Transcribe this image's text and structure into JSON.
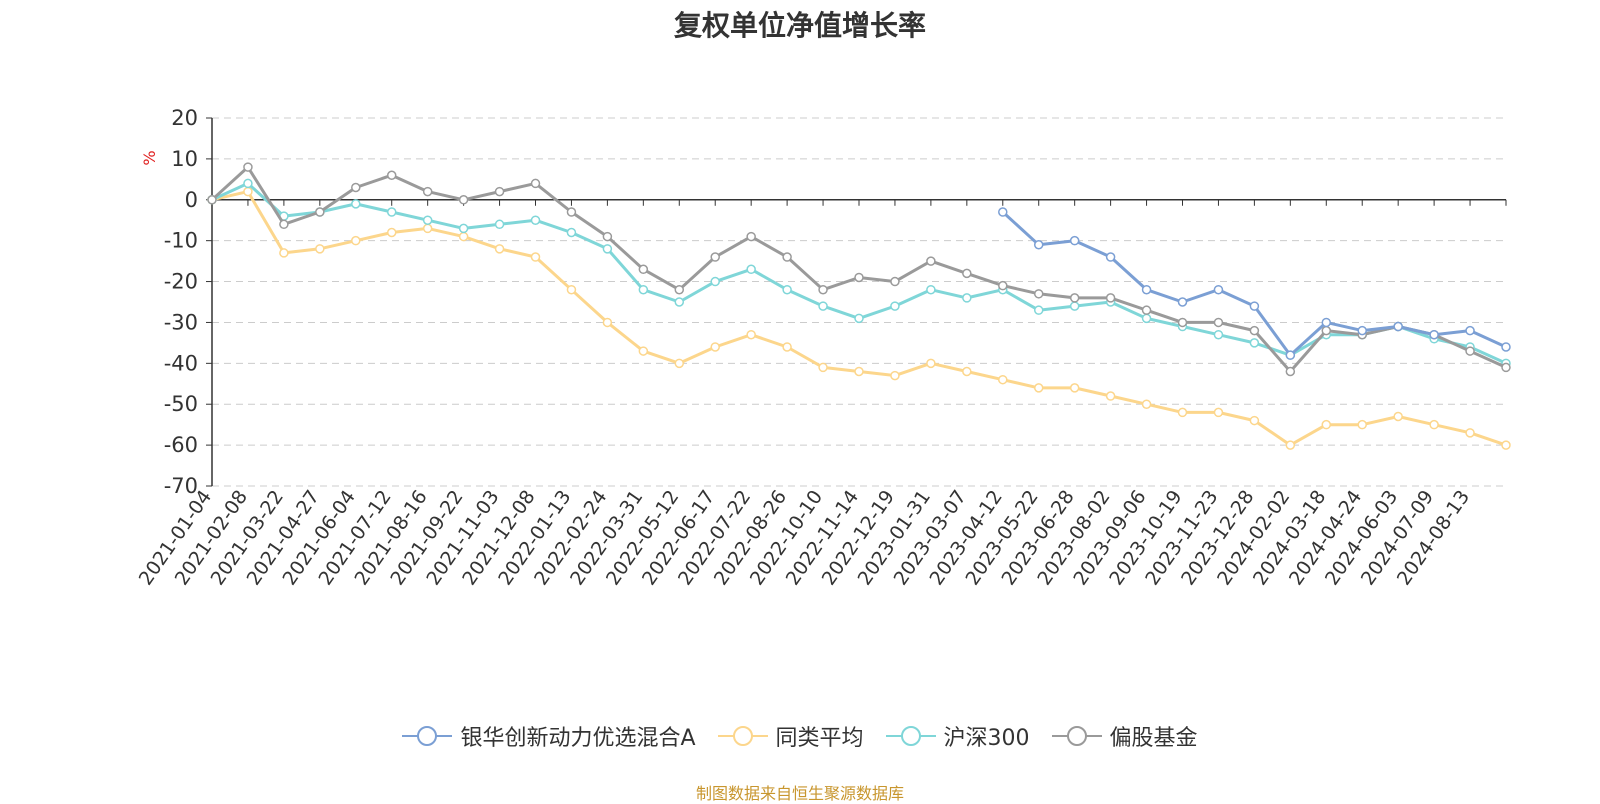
{
  "chart_data": {
    "type": "line",
    "title": "复权单位净值增长率",
    "ylabel": "%",
    "ylim": [
      -70,
      20
    ],
    "yticks": [
      20,
      10,
      0,
      -10,
      -20,
      -30,
      -40,
      -50,
      -60,
      -70
    ],
    "grid": true,
    "legend_position": "bottom-center",
    "x_tick_labels": [
      "2021-01-04",
      "2021-02-08",
      "2021-03-22",
      "2021-04-27",
      "2021-06-04",
      "2021-07-12",
      "2021-08-16",
      "2021-09-22",
      "2021-11-03",
      "2021-12-08",
      "2022-01-13",
      "2022-02-24",
      "2022-03-31",
      "2022-05-12",
      "2022-06-17",
      "2022-07-22",
      "2022-08-26",
      "2022-10-10",
      "2022-11-14",
      "2022-12-19",
      "2023-01-31",
      "2023-03-07",
      "2023-04-12",
      "2023-05-22",
      "2023-06-28",
      "2023-08-02",
      "2023-09-06",
      "2023-10-19",
      "2023-11-23",
      "2023-12-28",
      "2024-02-02",
      "2024-03-18",
      "2024-04-24",
      "2024-06-03",
      "2024-07-09",
      "2024-08-13"
    ],
    "x": [
      "2021-01-04",
      "2021-02-08",
      "2021-03-22",
      "2021-04-27",
      "2021-06-04",
      "2021-07-12",
      "2021-08-16",
      "2021-09-22",
      "2021-11-03",
      "2021-12-08",
      "2022-01-13",
      "2022-02-24",
      "2022-03-31",
      "2022-05-12",
      "2022-06-17",
      "2022-07-22",
      "2022-08-26",
      "2022-10-10",
      "2022-11-14",
      "2022-12-19",
      "2023-01-31",
      "2023-03-07",
      "2023-04-12",
      "2023-05-22",
      "2023-06-28",
      "2023-08-02",
      "2023-09-06",
      "2023-10-19",
      "2023-11-23",
      "2023-12-28",
      "2024-02-02",
      "2024-03-18",
      "2024-04-24",
      "2024-06-03",
      "2024-07-09",
      "2024-08-13",
      "2024-09-13"
    ],
    "series": [
      {
        "name": "银华创新动力优选混合A",
        "color": "#7b9fd4",
        "values": [
          null,
          null,
          null,
          null,
          null,
          null,
          null,
          null,
          null,
          null,
          null,
          null,
          null,
          null,
          null,
          null,
          null,
          null,
          null,
          null,
          null,
          null,
          -3,
          -11,
          -10,
          -14,
          -22,
          -25,
          -22,
          -26,
          -38,
          -30,
          -32,
          -31,
          -33,
          -32,
          -36
        ]
      },
      {
        "name": "同类平均",
        "color": "#fcd68c",
        "values": [
          0,
          2,
          -13,
          -12,
          -10,
          -8,
          -7,
          -9,
          -12,
          -14,
          -22,
          -30,
          -37,
          -40,
          -36,
          -33,
          -36,
          -41,
          -42,
          -43,
          -40,
          -42,
          -44,
          -46,
          -46,
          -48,
          -50,
          -52,
          -52,
          -54,
          -60,
          -55,
          -55,
          -53,
          -55,
          -57,
          -60
        ]
      },
      {
        "name": "沪深300",
        "color": "#7fd6d8",
        "values": [
          0,
          4,
          -4,
          -3,
          -1,
          -3,
          -5,
          -7,
          -6,
          -5,
          -8,
          -12,
          -22,
          -25,
          -20,
          -17,
          -22,
          -26,
          -29,
          -26,
          -22,
          -24,
          -22,
          -27,
          -26,
          -25,
          -29,
          -31,
          -33,
          -35,
          -38,
          -33,
          -33,
          -31,
          -34,
          -36,
          -40
        ]
      },
      {
        "name": "偏股基金",
        "color": "#9a9a9a",
        "values": [
          0,
          8,
          -6,
          -3,
          3,
          6,
          2,
          0,
          2,
          4,
          -3,
          -9,
          -17,
          -22,
          -14,
          -9,
          -14,
          -22,
          -19,
          -20,
          -15,
          -18,
          -21,
          -23,
          -24,
          -24,
          -27,
          -30,
          -30,
          -32,
          -42,
          -32,
          -33,
          -31,
          -33,
          -37,
          -41
        ]
      }
    ]
  },
  "legend": {
    "items": [
      {
        "label": "银华创新动力优选混合A",
        "color": "#7b9fd4"
      },
      {
        "label": "同类平均",
        "color": "#fcd68c"
      },
      {
        "label": "沪深300",
        "color": "#7fd6d8"
      },
      {
        "label": "偏股基金",
        "color": "#9a9a9a"
      }
    ]
  },
  "footer": {
    "source": "制图数据来自恒生聚源数据库"
  }
}
